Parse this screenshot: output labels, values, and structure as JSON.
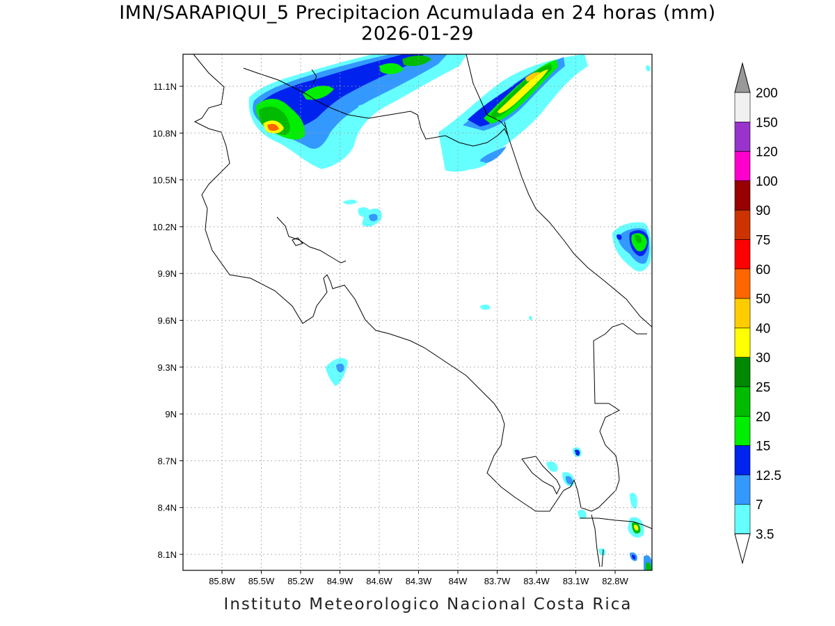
{
  "title": "IMN/SARAPIQUI_5 Precipitacion Acumulada en 24 horas (mm)",
  "date": "2026-01-29",
  "footer": "Instituto Meteorologico Nacional Costa Rica",
  "map": {
    "lon_range": [
      -86.05,
      -82.65
    ],
    "lat_range": [
      8.0,
      11.3
    ],
    "lon_ticks": [
      "85.8W",
      "85.5W",
      "85.2W",
      "84.9W",
      "84.6W",
      "84.3W",
      "84W",
      "83.7W",
      "83.4W",
      "83.1W",
      "82.8W"
    ],
    "lat_ticks": [
      "11.1N",
      "10.8N",
      "10.5N",
      "10.2N",
      "9.9N",
      "9.6N",
      "9.3N",
      "9N",
      "8.7N",
      "8.4N",
      "8.1N"
    ],
    "grid": true
  },
  "colorbar": {
    "levels": [
      "3.5",
      "7",
      "12.5",
      "15",
      "20",
      "25",
      "30",
      "40",
      "50",
      "60",
      "75",
      "90",
      "100",
      "120",
      "150",
      "200"
    ],
    "colors": [
      "#66ffff",
      "#3399ff",
      "#0022ee",
      "#00ee00",
      "#00bb00",
      "#008800",
      "#ffff00",
      "#ffcc00",
      "#ff6600",
      "#ff0000",
      "#cc3300",
      "#990000",
      "#ff00cc",
      "#9933cc",
      "#f0f0f0"
    ],
    "overflow_color": "#999999"
  }
}
